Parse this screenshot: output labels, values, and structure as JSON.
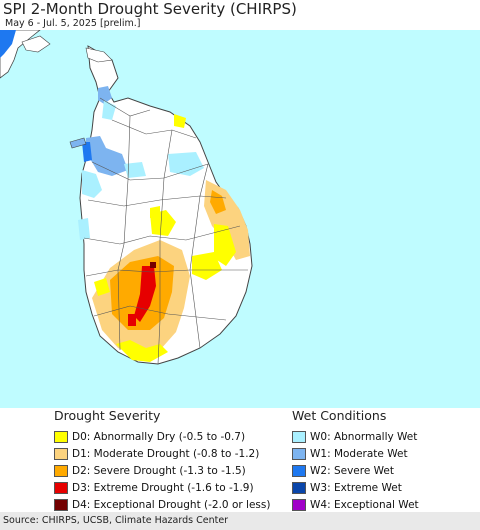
{
  "header": {
    "title": "SPI 2-Month Drought Severity (CHIRPS)",
    "subtitle": "May 6 - Jul. 5, 2025 [prelim.]"
  },
  "colors": {
    "sea": "#bffcff",
    "land": "#ffffff",
    "border": "#444444"
  },
  "legend": {
    "drought": {
      "heading": "Drought Severity",
      "items": [
        {
          "label": "D0: Abnormally Dry (-0.5 to -0.7)",
          "color": "#ffff00"
        },
        {
          "label": "D1: Moderate Drought (-0.8 to -1.2)",
          "color": "#fcd37f"
        },
        {
          "label": "D2: Severe Drought (-1.3 to -1.5)",
          "color": "#ffaa00"
        },
        {
          "label": "D3: Extreme Drought (-1.6 to -1.9)",
          "color": "#e60000"
        },
        {
          "label": "D4: Exceptional Drought (-2.0 or less)",
          "color": "#730000"
        }
      ]
    },
    "wet": {
      "heading": "Wet Conditions",
      "items": [
        {
          "label": "W0: Abnormally Wet",
          "color": "#aaf0ff"
        },
        {
          "label": "W1: Moderate Wet",
          "color": "#7db4f0"
        },
        {
          "label": "W2: Severe Wet",
          "color": "#1e78f0"
        },
        {
          "label": "W3: Extreme Wet",
          "color": "#0a46aa"
        },
        {
          "label": "W4: Exceptional Wet",
          "color": "#a000c8"
        }
      ]
    }
  },
  "footer": {
    "source": "Source: CHIRPS, UCSB, Climate Hazards Center"
  }
}
